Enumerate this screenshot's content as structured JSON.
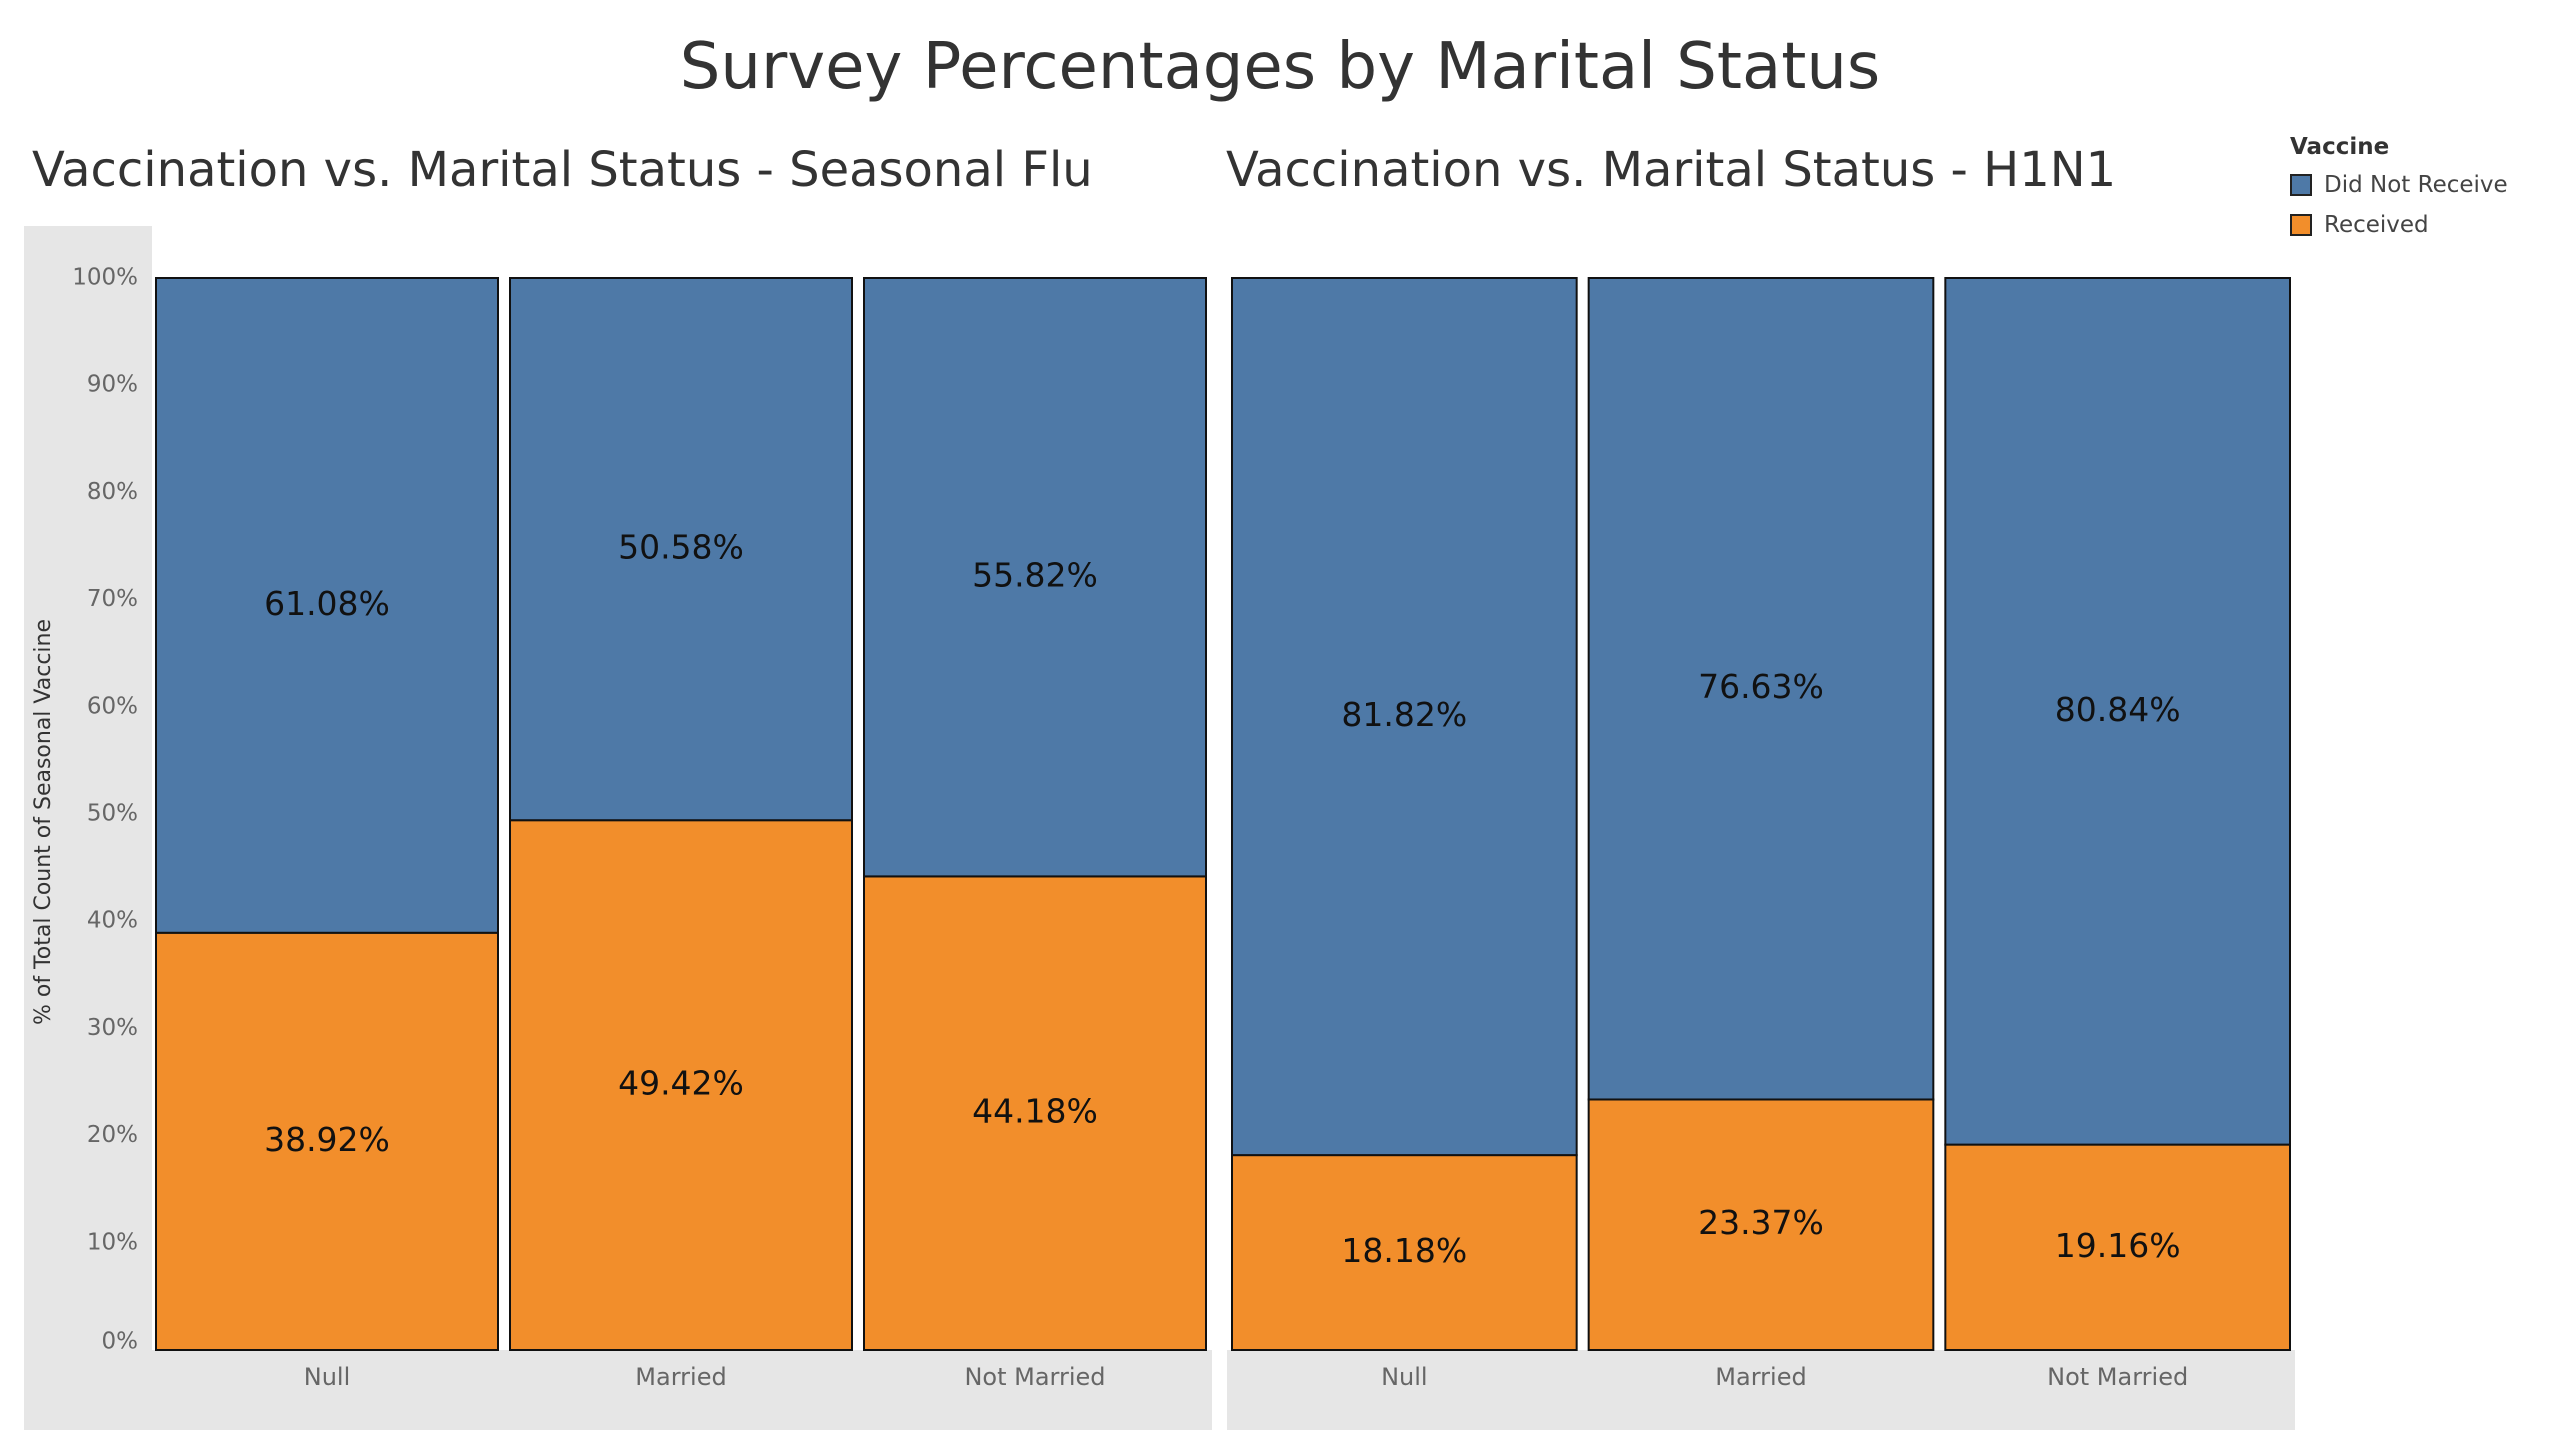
{
  "title": "Survey Percentages by Marital Status",
  "legend": {
    "title": "Vaccine",
    "items": [
      {
        "label": "Did Not Receive",
        "color": "#4e79a7"
      },
      {
        "label": "Received",
        "color": "#f28e2b"
      }
    ]
  },
  "chart_data": [
    {
      "type": "bar",
      "stacked": true,
      "title": "Vaccination vs. Marital Status - Seasonal Flu",
      "ylabel": "% of Total Count of Seasonal Vaccine",
      "xlabel": "",
      "ylim": [
        0,
        100
      ],
      "yticks": [
        "0%",
        "10%",
        "20%",
        "30%",
        "40%",
        "50%",
        "60%",
        "70%",
        "80%",
        "90%",
        "100%"
      ],
      "categories": [
        "Null",
        "Married",
        "Not Married"
      ],
      "series": [
        {
          "name": "Received",
          "values": [
            38.92,
            49.42,
            44.18
          ],
          "labels": [
            "38.92%",
            "49.42%",
            "44.18%"
          ]
        },
        {
          "name": "Did Not Receive",
          "values": [
            61.08,
            50.58,
            55.82
          ],
          "labels": [
            "61.08%",
            "50.58%",
            "55.82%"
          ]
        }
      ]
    },
    {
      "type": "bar",
      "stacked": true,
      "title": "Vaccination vs. Marital Status - H1N1",
      "ylim": [
        0,
        100
      ],
      "categories": [
        "Null",
        "Married",
        "Not Married"
      ],
      "series": [
        {
          "name": "Received",
          "values": [
            18.18,
            23.37,
            19.16
          ],
          "labels": [
            "18.18%",
            "23.37%",
            "19.16%"
          ]
        },
        {
          "name": "Did Not Receive",
          "values": [
            81.82,
            76.63,
            80.84
          ],
          "labels": [
            "81.82%",
            "76.63%",
            "80.84%"
          ]
        }
      ]
    }
  ]
}
